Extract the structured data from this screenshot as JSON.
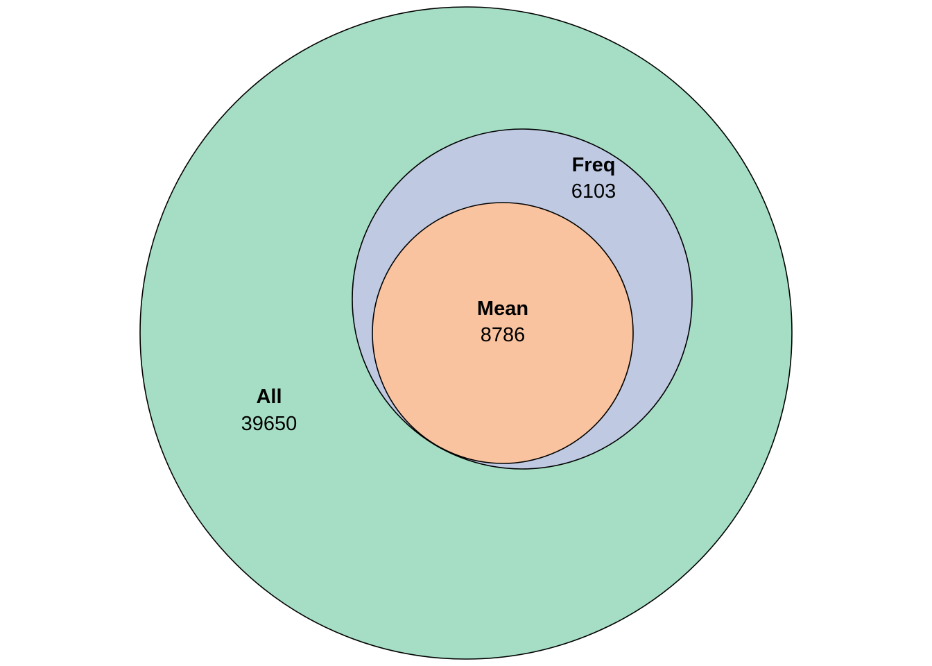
{
  "diagram": {
    "type": "venn",
    "sets": [
      {
        "id": "all",
        "name": "All",
        "count": "39650",
        "color": "#a5dec5"
      },
      {
        "id": "freq",
        "name": "Freq",
        "count": "6103",
        "color": "#bfcae2"
      },
      {
        "id": "mean",
        "name": "Mean",
        "count": "8786",
        "color": "#f9c39f"
      }
    ],
    "stroke_color": "#000000"
  }
}
